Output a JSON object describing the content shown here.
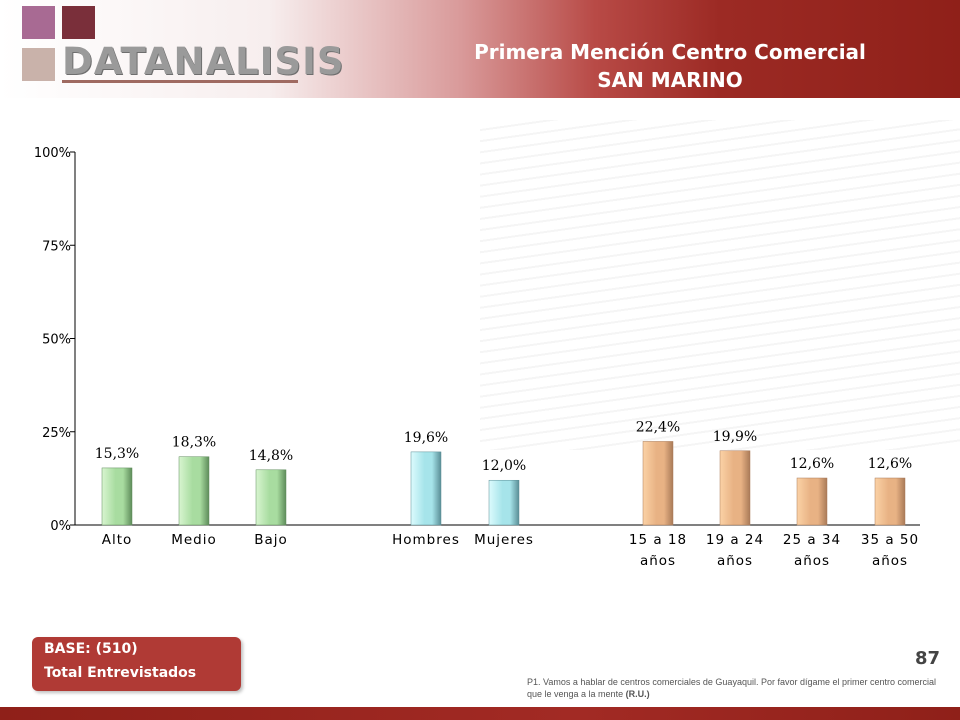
{
  "header": {
    "logo_text": "DATANALISIS",
    "title_line1": "Primera Mención Centro Comercial",
    "title_line2": "SAN MARINO"
  },
  "chart_data": {
    "type": "bar",
    "ylim": [
      0,
      100
    ],
    "yticks": [
      "100%",
      "75%",
      "50%",
      "25%",
      "0%"
    ],
    "yvalues": [
      100,
      75,
      50,
      25,
      0
    ],
    "grid": false,
    "legend": "none",
    "groups": [
      {
        "colors": [
          "#d8f5d0",
          "#a8dca0",
          "#5e8c5a"
        ],
        "bars": [
          {
            "label": [
              "Alto"
            ],
            "value": 15.3,
            "value_label": "15,3%"
          },
          {
            "label": [
              "Medio"
            ],
            "value": 18.3,
            "value_label": "18,3%"
          },
          {
            "label": [
              "Bajo"
            ],
            "value": 14.8,
            "value_label": "14,8%"
          }
        ]
      },
      {
        "colors": [
          "#dcfbfd",
          "#a6e4ea",
          "#5a8e96"
        ],
        "bars": [
          {
            "label": [
              "Hombres"
            ],
            "value": 19.6,
            "value_label": "19,6%"
          },
          {
            "label": [
              "Mujeres"
            ],
            "value": 12.0,
            "value_label": "12,0%"
          }
        ]
      },
      {
        "colors": [
          "#fbd2a6",
          "#e8b284",
          "#a97a58"
        ],
        "bars": [
          {
            "label": [
              "15 a 18",
              "años"
            ],
            "value": 22.4,
            "value_label": "22,4%"
          },
          {
            "label": [
              "19 a 24",
              "años"
            ],
            "value": 19.9,
            "value_label": "19,9%"
          },
          {
            "label": [
              "25 a 34",
              "años"
            ],
            "value": 12.6,
            "value_label": "12,6%"
          },
          {
            "label": [
              "35 a 50",
              "años"
            ],
            "value": 12.6,
            "value_label": "12,6%"
          }
        ]
      }
    ]
  },
  "base_box": {
    "line1": "BASE:  (510)",
    "line2": "Total Entrevistados"
  },
  "page_number": "87",
  "footnote": {
    "text": "P1. Vamos a hablar de centros comerciales de Guayaquil.  Por favor dígame el primer centro comercial que le venga a la mente",
    "tag": "(R.U.)"
  }
}
